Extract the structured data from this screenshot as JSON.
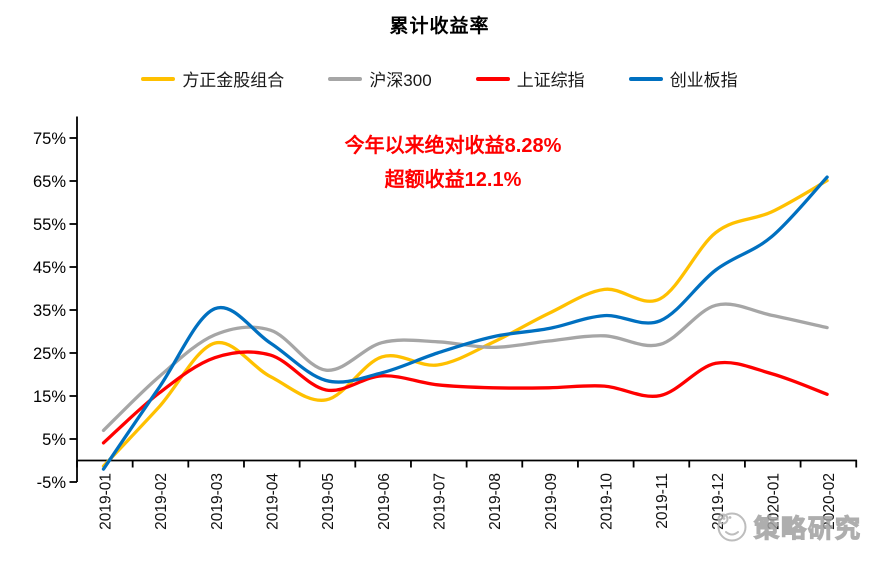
{
  "title": "累计收益率",
  "annotation": {
    "line1": "今年以来绝对收益8.28%",
    "line2": "超额收益12.1%",
    "color": "#FF0000"
  },
  "watermark": {
    "text": "策略研究"
  },
  "chart_data": {
    "type": "line",
    "title": "累计收益率",
    "line_style": "smooth",
    "unit": "%",
    "x": [
      "2019-01",
      "2019-02",
      "2019-03",
      "2019-04",
      "2019-05",
      "2019-06",
      "2019-07",
      "2019-08",
      "2019-09",
      "2019-10",
      "2019-11",
      "2019-12",
      "2020-01",
      "2020-02"
    ],
    "series": [
      {
        "name": "方正金股组合",
        "color": "#FFC000",
        "values": [
          -1.3,
          12.5,
          27.3,
          19.5,
          14.1,
          24.1,
          22.2,
          27.5,
          34.2,
          39.8,
          37.6,
          53.0,
          57.8,
          65.1
        ]
      },
      {
        "name": "沪深300",
        "color": "#A6A6A6",
        "values": [
          7.0,
          19.5,
          29.2,
          30.3,
          21.0,
          27.4,
          27.6,
          26.3,
          27.8,
          29.0,
          27.0,
          36.1,
          33.8,
          30.9
        ]
      },
      {
        "name": "上证综指",
        "color": "#FF0000",
        "values": [
          4.1,
          15.7,
          23.9,
          24.5,
          16.4,
          19.7,
          17.6,
          16.9,
          16.9,
          17.3,
          15.1,
          22.6,
          20.2,
          15.4
        ]
      },
      {
        "name": "创业板指",
        "color": "#0070C0",
        "values": [
          -2.0,
          17.0,
          35.3,
          27.3,
          18.6,
          20.4,
          25.0,
          28.8,
          30.7,
          33.7,
          32.5,
          44.3,
          52.0,
          65.9
        ]
      }
    ],
    "y_tick_labels": [
      "75%",
      "65%",
      "55%",
      "45%",
      "35%",
      "25%",
      "15%",
      "5%",
      "-5%"
    ],
    "y_tick_values": [
      75,
      65,
      55,
      45,
      35,
      25,
      15,
      5,
      -5
    ],
    "ylim": [
      -5,
      80
    ],
    "xlabel": "",
    "ylabel": "",
    "grid": false,
    "legend_position": "top"
  }
}
